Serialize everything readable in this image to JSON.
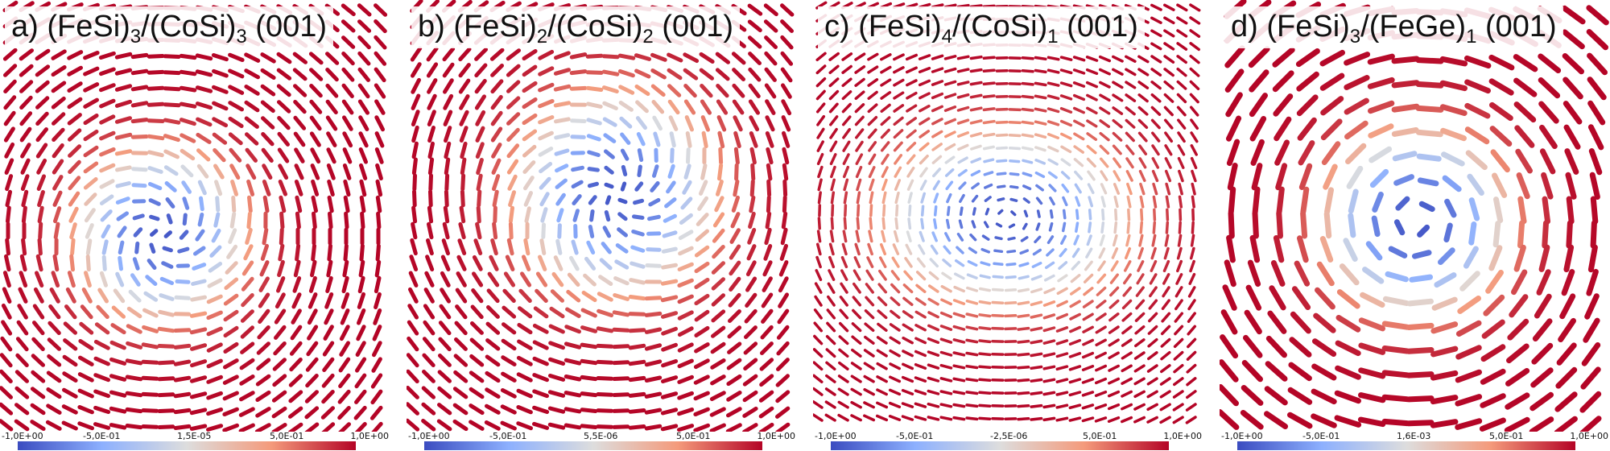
{
  "panels": [
    {
      "prefix": "a) (FeSi)",
      "sub1": "3",
      "middle": "/(CoSi)",
      "sub2": "3",
      "suffix": " (001)",
      "pattern": "spiral-skyrmion",
      "colorbar_ticks": [
        "-1,0E+00",
        "-5,0E-01",
        "1,5E-05",
        "5,0E-01",
        "1,0E+00"
      ]
    },
    {
      "prefix": "b) (FeSi)",
      "sub1": "2",
      "middle": "/(CoSi)",
      "sub2": "2",
      "suffix": " (001)",
      "pattern": "spiral-skyrmion",
      "colorbar_ticks": [
        "-1,0E+00",
        "-5,0E-01",
        "5,5E-06",
        "5,0E-01",
        "1,0E+00"
      ]
    },
    {
      "prefix": "c) (FeSi)",
      "sub1": "4",
      "middle": "/(CoSi)",
      "sub2": "1",
      "suffix": " (001)",
      "pattern": "elongated-skyrmion",
      "colorbar_ticks": [
        "-1,0E+00",
        "-5,0E-01",
        "-2,5E-06",
        "5,0E-01",
        "1,0E+00"
      ]
    },
    {
      "prefix": "d) (FeSi)",
      "sub1": "3",
      "middle": "/(FeGe)",
      "sub2": "1",
      "suffix": " (001)",
      "pattern": "bloch-skyrmion",
      "colorbar_ticks": [
        "-1,0E+00",
        "-5,0E-01",
        "1,6E-03",
        "5,0E-01",
        "1,0E+00"
      ]
    }
  ],
  "colors": {
    "negative": "#3b4cc0",
    "neutral": "#dddddd",
    "positive": "#b40426"
  }
}
